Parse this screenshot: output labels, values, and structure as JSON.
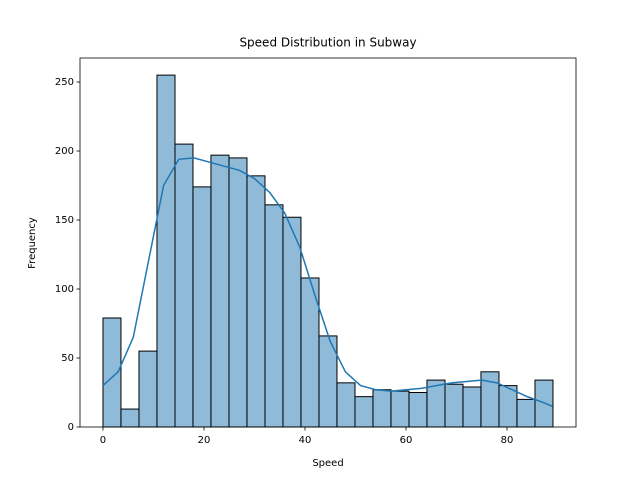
{
  "chart_data": {
    "type": "histogram",
    "title": "Speed Distribution in Subway",
    "x_label": "Speed",
    "y_label": "Frequency",
    "bins": [
      0,
      3.56,
      7.13,
      10.69,
      14.26,
      17.82,
      21.38,
      24.95,
      28.51,
      32.08,
      35.64,
      39.2,
      42.77,
      46.33,
      49.9,
      53.46,
      57.02,
      60.59,
      64.15,
      67.72,
      71.28,
      74.84,
      78.41,
      81.97,
      85.54,
      89.1
    ],
    "values": [
      79,
      13,
      55,
      255,
      205,
      174,
      197,
      195,
      182,
      161,
      152,
      108,
      66,
      32,
      22,
      27,
      26,
      25,
      34,
      31,
      29,
      40,
      30,
      20,
      34
    ],
    "color": "#1f77b4",
    "alpha": 0.5,
    "edgecolor": "#000000",
    "kde": {
      "color": "#1f77b4",
      "x": [
        0,
        3,
        6,
        9,
        12,
        15,
        18,
        21,
        24,
        27,
        30,
        33,
        36,
        39,
        42,
        45,
        48,
        51,
        54,
        57,
        60,
        63,
        66,
        69,
        72,
        75,
        78,
        81,
        84,
        87,
        89
      ],
      "values": [
        30,
        40,
        65,
        120,
        175,
        194,
        195,
        192,
        189,
        186,
        180,
        170,
        155,
        130,
        95,
        62,
        40,
        30,
        27,
        26,
        27,
        28,
        30,
        32,
        33,
        34,
        32,
        27,
        22,
        18,
        15
      ]
    },
    "xlim": [
      -4.55,
      93.66
    ],
    "ylim": [
      0,
      267.4
    ],
    "xticks": [
      0,
      20,
      40,
      60,
      80
    ],
    "yticks": [
      0,
      50,
      100,
      150,
      200,
      250
    ]
  }
}
